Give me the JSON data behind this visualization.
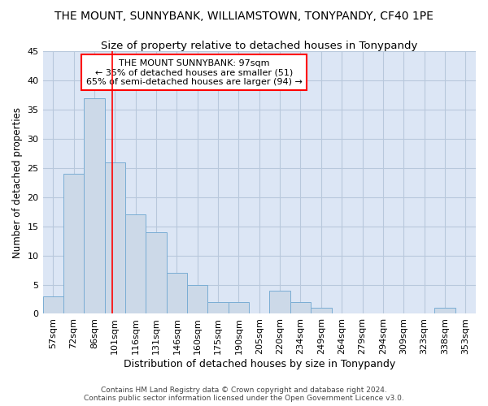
{
  "title": "THE MOUNT, SUNNYBANK, WILLIAMSTOWN, TONYPANDY, CF40 1PE",
  "subtitle": "Size of property relative to detached houses in Tonypandy",
  "xlabel": "Distribution of detached houses by size in Tonypandy",
  "ylabel": "Number of detached properties",
  "bar_color": "#ccd9e8",
  "bar_edge_color": "#7aadd4",
  "background_color": "#dce6f5",
  "grid_color": "#b8c8dc",
  "categories": [
    "57sqm",
    "72sqm",
    "86sqm",
    "101sqm",
    "116sqm",
    "131sqm",
    "146sqm",
    "160sqm",
    "175sqm",
    "190sqm",
    "205sqm",
    "220sqm",
    "234sqm",
    "249sqm",
    "264sqm",
    "279sqm",
    "294sqm",
    "309sqm",
    "323sqm",
    "338sqm",
    "353sqm"
  ],
  "values": [
    3,
    24,
    37,
    26,
    17,
    14,
    7,
    5,
    2,
    2,
    0,
    4,
    2,
    1,
    0,
    0,
    0,
    0,
    0,
    1,
    0
  ],
  "ylim": [
    0,
    45
  ],
  "yticks": [
    0,
    5,
    10,
    15,
    20,
    25,
    30,
    35,
    40,
    45
  ],
  "property_label": "THE MOUNT SUNNYBANK: 97sqm",
  "annotation_line1": "← 35% of detached houses are smaller (51)",
  "annotation_line2": "65% of semi-detached houses are larger (94) →",
  "vline_x_index": 2.87,
  "footer_line1": "Contains HM Land Registry data © Crown copyright and database right 2024.",
  "footer_line2": "Contains public sector information licensed under the Open Government Licence v3.0.",
  "title_fontsize": 10,
  "subtitle_fontsize": 9.5,
  "xlabel_fontsize": 9,
  "ylabel_fontsize": 8.5,
  "tick_fontsize": 8,
  "annotation_fontsize": 8,
  "footer_fontsize": 6.5
}
